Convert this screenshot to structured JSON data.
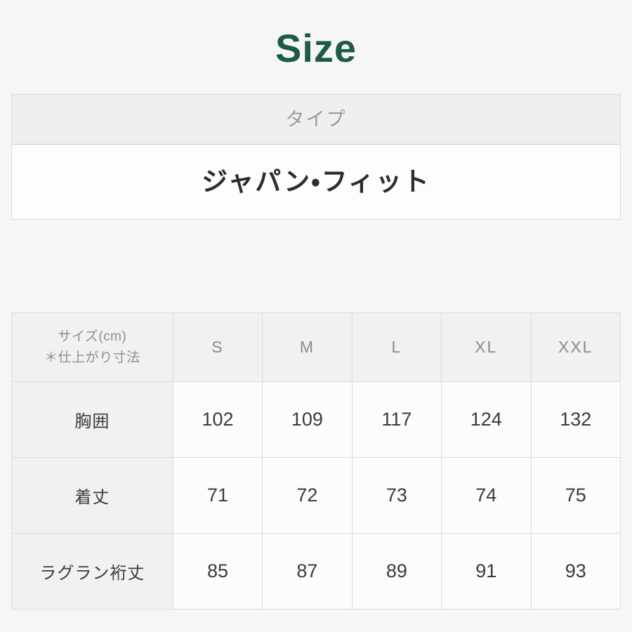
{
  "page": {
    "title": "Size",
    "title_color": "#1d5b44"
  },
  "type_box": {
    "header": "タイプ",
    "value": "ジャパン・フィット"
  },
  "size_table": {
    "corner_header_line1": "サイズ(cm)",
    "corner_header_line2": "＊仕上がり寸法",
    "columns": [
      "S",
      "M",
      "L",
      "XL",
      "XXL"
    ],
    "rows": [
      {
        "label": "胸囲",
        "values": [
          "102",
          "109",
          "117",
          "124",
          "132"
        ]
      },
      {
        "label": "着丈",
        "values": [
          "71",
          "72",
          "73",
          "74",
          "75"
        ]
      },
      {
        "label": "ラグラン裄丈",
        "values": [
          "85",
          "87",
          "89",
          "91",
          "93"
        ]
      }
    ]
  },
  "colors": {
    "page_background": "#f6f6f6",
    "header_cell_background": "#f1f1f1",
    "data_cell_background": "#fcfcfc",
    "border": "#dadada"
  }
}
